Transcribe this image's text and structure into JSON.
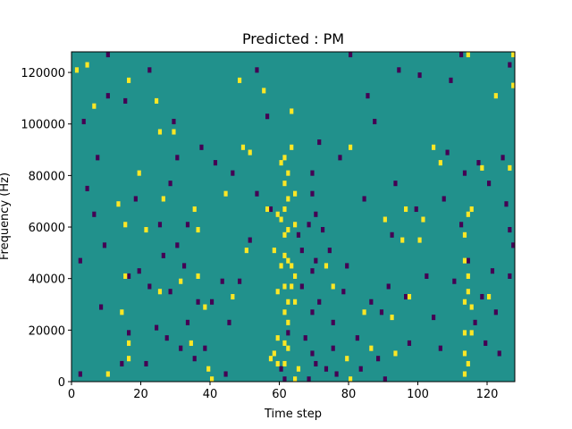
{
  "chart_data": {
    "type": "heatmap",
    "title": "Predicted : PM",
    "xlabel": "Time step",
    "ylabel": "Frequency (Hz)",
    "xlim": [
      0,
      128
    ],
    "ylim": [
      0,
      128000
    ],
    "xticks": [
      0,
      20,
      40,
      60,
      80,
      100,
      120
    ],
    "yticks": [
      0,
      20000,
      40000,
      60000,
      80000,
      100000,
      120000
    ],
    "grid": false,
    "colormap": "viridis",
    "levels": [
      -1,
      0,
      1
    ],
    "colors": {
      "low": "#440154",
      "mid": "#21918c",
      "high": "#fde725",
      "background": "#21918c"
    },
    "cells": {
      "note": "Each cell is [time_step, frequency_Hz_start, value]; all unlisted cells have value 0.",
      "high": [
        [
          1,
          120000
        ],
        [
          4,
          122000
        ],
        [
          6,
          106000
        ],
        [
          10,
          2000
        ],
        [
          13,
          68000
        ],
        [
          14,
          26000
        ],
        [
          15,
          40000
        ],
        [
          15,
          60000
        ],
        [
          16,
          8000
        ],
        [
          16,
          14000
        ],
        [
          16,
          116000
        ],
        [
          19,
          80000
        ],
        [
          21,
          58000
        ],
        [
          24,
          108000
        ],
        [
          25,
          34000
        ],
        [
          25,
          96000
        ],
        [
          26,
          70000
        ],
        [
          29,
          96000
        ],
        [
          31,
          38000
        ],
        [
          34,
          14000
        ],
        [
          35,
          66000
        ],
        [
          36,
          58000
        ],
        [
          36,
          40000
        ],
        [
          38,
          28000
        ],
        [
          39,
          4000
        ],
        [
          40,
          0
        ],
        [
          44,
          72000
        ],
        [
          46,
          32000
        ],
        [
          48,
          116000
        ],
        [
          49,
          90000
        ],
        [
          50,
          50000
        ],
        [
          51,
          88000
        ],
        [
          55,
          112000
        ],
        [
          56,
          66000
        ],
        [
          57,
          8000
        ],
        [
          58,
          10000
        ],
        [
          58,
          50000
        ],
        [
          59,
          6000
        ],
        [
          59,
          16000
        ],
        [
          59,
          34000
        ],
        [
          59,
          64000
        ],
        [
          60,
          44000
        ],
        [
          60,
          62000
        ],
        [
          60,
          84000
        ],
        [
          61,
          6000
        ],
        [
          61,
          14000
        ],
        [
          61,
          26000
        ],
        [
          61,
          36000
        ],
        [
          61,
          48000
        ],
        [
          61,
          56000
        ],
        [
          61,
          66000
        ],
        [
          61,
          76000
        ],
        [
          61,
          86000
        ],
        [
          62,
          12000
        ],
        [
          62,
          22000
        ],
        [
          62,
          30000
        ],
        [
          62,
          46000
        ],
        [
          62,
          58000
        ],
        [
          62,
          70000
        ],
        [
          62,
          80000
        ],
        [
          63,
          36000
        ],
        [
          63,
          44000
        ],
        [
          63,
          90000
        ],
        [
          63,
          104000
        ],
        [
          64,
          0
        ],
        [
          64,
          30000
        ],
        [
          64,
          40000
        ],
        [
          64,
          60000
        ],
        [
          64,
          72000
        ],
        [
          65,
          4000
        ],
        [
          73,
          44000
        ],
        [
          75,
          36000
        ],
        [
          79,
          8000
        ],
        [
          80,
          0
        ],
        [
          80,
          90000
        ],
        [
          84,
          26000
        ],
        [
          86,
          12000
        ],
        [
          90,
          62000
        ],
        [
          92,
          24000
        ],
        [
          93,
          10000
        ],
        [
          95,
          54000
        ],
        [
          96,
          66000
        ],
        [
          97,
          32000
        ],
        [
          100,
          54000
        ],
        [
          101,
          62000
        ],
        [
          104,
          90000
        ],
        [
          106,
          84000
        ],
        [
          113,
          2000
        ],
        [
          113,
          10000
        ],
        [
          113,
          18000
        ],
        [
          113,
          30000
        ],
        [
          113,
          46000
        ],
        [
          113,
          56000
        ],
        [
          114,
          6000
        ],
        [
          114,
          34000
        ],
        [
          114,
          40000
        ],
        [
          114,
          64000
        ],
        [
          114,
          126000
        ],
        [
          115,
          18000
        ],
        [
          115,
          28000
        ],
        [
          115,
          66000
        ],
        [
          118,
          82000
        ],
        [
          120,
          32000
        ],
        [
          122,
          110000
        ],
        [
          126,
          82000
        ],
        [
          127,
          114000
        ],
        [
          127,
          126000
        ]
      ],
      "low": [
        [
          2,
          2000
        ],
        [
          2,
          46000
        ],
        [
          3,
          100000
        ],
        [
          4,
          74000
        ],
        [
          6,
          64000
        ],
        [
          7,
          86000
        ],
        [
          8,
          28000
        ],
        [
          9,
          52000
        ],
        [
          10,
          110000
        ],
        [
          10,
          126000
        ],
        [
          14,
          6000
        ],
        [
          15,
          108000
        ],
        [
          16,
          18000
        ],
        [
          16,
          40000
        ],
        [
          18,
          70000
        ],
        [
          19,
          42000
        ],
        [
          21,
          6000
        ],
        [
          22,
          36000
        ],
        [
          22,
          120000
        ],
        [
          24,
          20000
        ],
        [
          25,
          60000
        ],
        [
          26,
          48000
        ],
        [
          27,
          16000
        ],
        [
          28,
          34000
        ],
        [
          28,
          76000
        ],
        [
          29,
          100000
        ],
        [
          30,
          52000
        ],
        [
          30,
          86000
        ],
        [
          31,
          12000
        ],
        [
          32,
          44000
        ],
        [
          33,
          22000
        ],
        [
          33,
          60000
        ],
        [
          35,
          8000
        ],
        [
          36,
          30000
        ],
        [
          37,
          90000
        ],
        [
          38,
          12000
        ],
        [
          40,
          30000
        ],
        [
          41,
          84000
        ],
        [
          43,
          38000
        ],
        [
          44,
          2000
        ],
        [
          45,
          22000
        ],
        [
          46,
          80000
        ],
        [
          48,
          38000
        ],
        [
          51,
          54000
        ],
        [
          53,
          72000
        ],
        [
          53,
          120000
        ],
        [
          56,
          102000
        ],
        [
          57,
          66000
        ],
        [
          60,
          4000
        ],
        [
          61,
          0
        ],
        [
          62,
          18000
        ],
        [
          65,
          56000
        ],
        [
          66,
          36000
        ],
        [
          66,
          50000
        ],
        [
          67,
          16000
        ],
        [
          68,
          0
        ],
        [
          68,
          60000
        ],
        [
          69,
          10000
        ],
        [
          69,
          26000
        ],
        [
          69,
          42000
        ],
        [
          69,
          72000
        ],
        [
          69,
          80000
        ],
        [
          70,
          6000
        ],
        [
          70,
          46000
        ],
        [
          70,
          64000
        ],
        [
          71,
          30000
        ],
        [
          71,
          92000
        ],
        [
          72,
          58000
        ],
        [
          73,
          4000
        ],
        [
          74,
          50000
        ],
        [
          75,
          12000
        ],
        [
          75,
          22000
        ],
        [
          76,
          2000
        ],
        [
          77,
          86000
        ],
        [
          78,
          34000
        ],
        [
          79,
          44000
        ],
        [
          80,
          126000
        ],
        [
          82,
          16000
        ],
        [
          83,
          4000
        ],
        [
          84,
          70000
        ],
        [
          85,
          110000
        ],
        [
          86,
          30000
        ],
        [
          87,
          100000
        ],
        [
          88,
          8000
        ],
        [
          89,
          26000
        ],
        [
          90,
          0
        ],
        [
          91,
          36000
        ],
        [
          92,
          56000
        ],
        [
          93,
          76000
        ],
        [
          94,
          120000
        ],
        [
          96,
          32000
        ],
        [
          97,
          14000
        ],
        [
          99,
          66000
        ],
        [
          100,
          118000
        ],
        [
          102,
          40000
        ],
        [
          104,
          24000
        ],
        [
          106,
          12000
        ],
        [
          107,
          70000
        ],
        [
          108,
          88000
        ],
        [
          109,
          116000
        ],
        [
          110,
          38000
        ],
        [
          112,
          60000
        ],
        [
          112,
          126000
        ],
        [
          113,
          80000
        ],
        [
          114,
          46000
        ],
        [
          116,
          22000
        ],
        [
          117,
          84000
        ],
        [
          118,
          32000
        ],
        [
          119,
          14000
        ],
        [
          120,
          76000
        ],
        [
          121,
          42000
        ],
        [
          122,
          26000
        ],
        [
          123,
          10000
        ],
        [
          124,
          86000
        ],
        [
          125,
          68000
        ],
        [
          126,
          58000
        ],
        [
          126,
          40000
        ],
        [
          126,
          122000
        ],
        [
          127,
          52000
        ]
      ]
    }
  }
}
